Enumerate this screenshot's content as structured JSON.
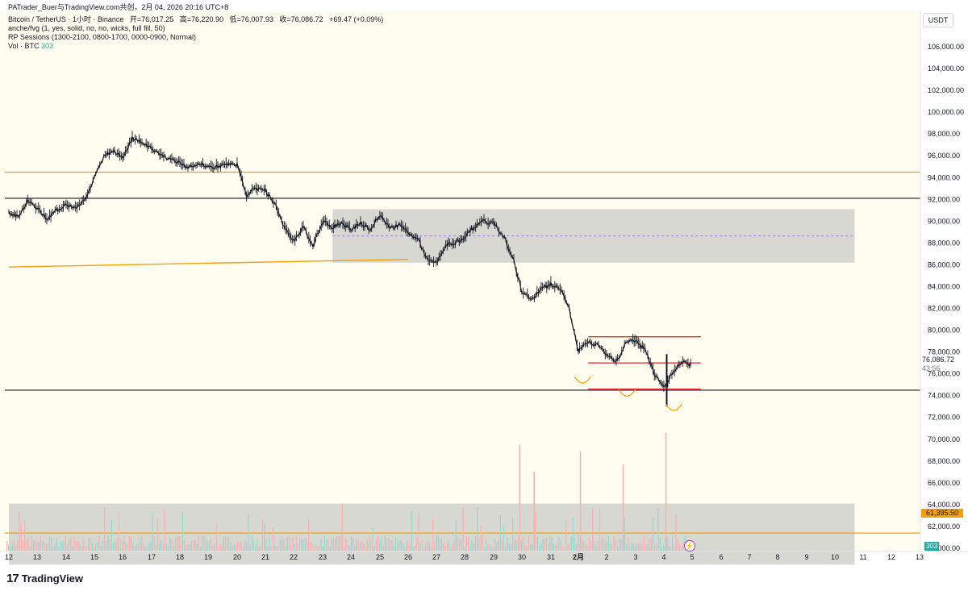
{
  "header": {
    "title": "PATrader_Buer与TradingView.com共创，2月 04, 2026 20:16 UTC+8",
    "ohlc_line": "Bitcoin / TetherUS · 1小时 · Binance",
    "open": "开=76,017.25",
    "high": "高=76,220.90",
    "low": "低=76,007.93",
    "close": "收=76,086.72",
    "change": "+69.47 (+0.09%)",
    "indicator1": "anche/fvg (1, yes, solid, no, no, wicks, full fill, 50)",
    "indicator2": "RP Sessions (1300-2100, 0800-1700, 0000-0900, Normal)",
    "indicator3_label": "Vol · BTC",
    "indicator3_value": "303"
  },
  "price_scale": {
    "currency": "USDT",
    "current_price": "76,086.72",
    "countdown": "43:56",
    "level_label": "61,395.50",
    "volume_label": "303"
  },
  "brand": {
    "logo_mark": "17",
    "logo_text": "TradingView"
  },
  "colors": {
    "background": "#fffdf0",
    "candle": "#131722",
    "orange": "#f59e0b",
    "red_line": "#e5252a",
    "zone": "#d6d6d0",
    "volume_up": "#9fd4cf",
    "volume_down": "#f3b4b4"
  },
  "chart_data": {
    "type": "line",
    "title": "",
    "xlabel": "",
    "ylabel": "",
    "ylim": [
      58500,
      108000
    ],
    "y_ticks": [
      "60,000.00",
      "62,000.00",
      "64,000.00",
      "66,000.00",
      "68,000.00",
      "70,000.00",
      "72,000.00",
      "74,000.00",
      "76,000.00",
      "78,000.00",
      "80,000.00",
      "82,000.00",
      "84,000.00",
      "86,000.00",
      "88,000.00",
      "90,000.00",
      "92,000.00",
      "94,000.00",
      "96,000.00",
      "98,000.00",
      "100,000.00",
      "102,000.00",
      "104,000.00",
      "106,000.00"
    ],
    "x_ticks": [
      "12",
      "13",
      "14",
      "15",
      "16",
      "17",
      "18",
      "19",
      "20",
      "21",
      "22",
      "23",
      "24",
      "25",
      "26",
      "27",
      "28",
      "29",
      "30",
      "31",
      "2月",
      "2",
      "3",
      "4",
      "5",
      "6",
      "7",
      "8",
      "9",
      "10",
      "11",
      "12",
      "13"
    ],
    "grid": false,
    "series": [
      {
        "values": [
          90800,
          90500,
          91800,
          91200,
          90200,
          91000,
          91500,
          91200,
          92000,
          94000,
          95800,
          96500,
          95800,
          97600,
          97200,
          96600,
          96000,
          95700,
          95300,
          94900,
          95300,
          95000,
          95000,
          95200,
          95200,
          92400,
          93000,
          92800,
          91600,
          89400,
          88200,
          89400,
          87800,
          90000,
          89400,
          89800,
          89200,
          89900,
          89200,
          90600,
          89400,
          89600,
          89000,
          88400,
          86500,
          86200,
          87800,
          88000,
          88500,
          89500,
          90000,
          89800,
          88700,
          86800,
          83600,
          82800,
          83800,
          84200,
          83900,
          81900,
          78100,
          78800,
          78700,
          77800,
          77000,
          78900,
          79000,
          78200,
          76000,
          74700,
          76300,
          77200,
          76700
        ]
      }
    ],
    "x_start": 12,
    "x_step": 0.3333,
    "horizontal_lines": [
      {
        "y": 94500,
        "color": "orange"
      },
      {
        "y": 92100,
        "color": "black"
      },
      {
        "y": 74500,
        "color": "black"
      },
      {
        "y": 61395.5,
        "color": "orange"
      }
    ],
    "trendline": {
      "x": [
        11.8,
        26.0
      ],
      "y": [
        85800,
        86500
      ],
      "color": "orange"
    },
    "zones": [
      {
        "x": [
          23.35,
          41.7
        ],
        "y": [
          86200,
          91100
        ]
      },
      {
        "x": [
          11.8,
          41.7
        ],
        "y": [
          58500,
          64100
        ]
      }
    ],
    "zone_midline": {
      "x": [
        23.35,
        41.7
      ],
      "y": 88650
    },
    "red_levels": [
      {
        "x": [
          1.35,
          5.3
        ],
        "y": 79400
      },
      {
        "x": [
          1.35,
          5.3
        ],
        "y": 77000
      },
      {
        "x": [
          1.35,
          5.3
        ],
        "y": 74600
      }
    ],
    "volume": {
      "peaks": [
        {
          "x": 29.9,
          "v": 69500
        },
        {
          "x": 1.05,
          "v": 68900
        },
        {
          "x": 4.05,
          "v": 70600
        },
        {
          "x": 2.55,
          "v": 67700
        },
        {
          "x": 30.4,
          "v": 67000
        }
      ]
    }
  }
}
